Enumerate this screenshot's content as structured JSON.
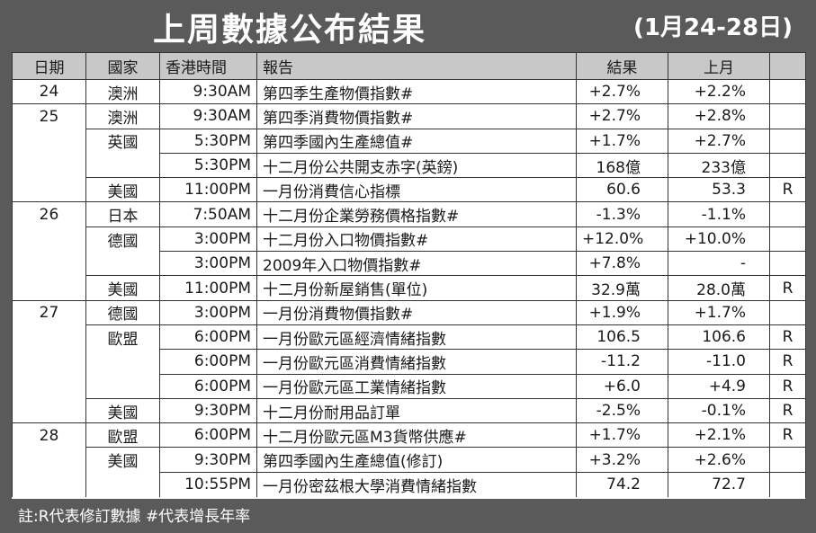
{
  "title": "上周數據公布結果",
  "date_range": "(1月24-28日)",
  "headers": {
    "date": "日期",
    "country": "國家",
    "time": "香港時間",
    "report": "報告",
    "result": "結果",
    "previous": "上月",
    "flag": ""
  },
  "rows": [
    {
      "date": "24",
      "country": "澳洲",
      "time": "9:30AM",
      "report": "第四季生產物價指數#",
      "result": "+2.7%",
      "previous": "+2.2%",
      "flag": ""
    },
    {
      "date": "25",
      "country": "澳洲",
      "time": "9:30AM",
      "report": "第四季消費物價指數#",
      "result": "+2.7%",
      "previous": "+2.8%",
      "flag": ""
    },
    {
      "date": "",
      "country": "英國",
      "time": "5:30PM",
      "report": "第四季國內生產總值#",
      "result": "+1.7%",
      "previous": "+2.7%",
      "flag": ""
    },
    {
      "date": "",
      "country": "",
      "time": "5:30PM",
      "report": "十二月份公共開支赤字(英鎊)",
      "result": "168億",
      "previous": "233億",
      "flag": ""
    },
    {
      "date": "",
      "country": "美國",
      "time": "11:00PM",
      "report": "一月份消費信心指標",
      "result": "60.6",
      "previous": "53.3",
      "flag": "R"
    },
    {
      "date": "26",
      "country": "日本",
      "time": "7:50AM",
      "report": "十二月份企業勞務價格指數#",
      "result": "-1.3%",
      "previous": "-1.1%",
      "flag": ""
    },
    {
      "date": "",
      "country": "德國",
      "time": "3:00PM",
      "report": "十二月份入口物價指數#",
      "result": "+12.0%",
      "previous": "+10.0%",
      "flag": ""
    },
    {
      "date": "",
      "country": "",
      "time": "3:00PM",
      "report": "2009年入口物價指數#",
      "result": "+7.8%",
      "previous": "-",
      "flag": ""
    },
    {
      "date": "",
      "country": "美國",
      "time": "11:00PM",
      "report": "十二月份新屋銷售(單位)",
      "result": "32.9萬",
      "previous": "28.0萬",
      "flag": "R"
    },
    {
      "date": "27",
      "country": "德國",
      "time": "3:00PM",
      "report": "一月份消費物價指數#",
      "result": "+1.9%",
      "previous": "+1.7%",
      "flag": ""
    },
    {
      "date": "",
      "country": "歐盟",
      "time": "6:00PM",
      "report": "一月份歐元區經濟情緒指數",
      "result": "106.5",
      "previous": "106.6",
      "flag": "R"
    },
    {
      "date": "",
      "country": "",
      "time": "6:00PM",
      "report": "一月份歐元區消費情緒指數",
      "result": "-11.2",
      "previous": "-11.0",
      "flag": "R"
    },
    {
      "date": "",
      "country": "",
      "time": "6:00PM",
      "report": "一月份歐元區工業情緒指數",
      "result": "+6.0",
      "previous": "+4.9",
      "flag": "R"
    },
    {
      "date": "",
      "country": "美國",
      "time": "9:30PM",
      "report": "十二月份耐用品訂單",
      "result": "-2.5%",
      "previous": "-0.1%",
      "flag": "R"
    },
    {
      "date": "28",
      "country": "歐盟",
      "time": "6:00PM",
      "report": "十二月份歐元區M3貨幣供應#",
      "result": "+1.7%",
      "previous": "+2.1%",
      "flag": "R"
    },
    {
      "date": "",
      "country": "美國",
      "time": "9:30PM",
      "report": "第四季國內生產總值(修訂)",
      "result": "+3.2%",
      "previous": "+2.6%",
      "flag": ""
    },
    {
      "date": "",
      "country": "",
      "time": "10:55PM",
      "report": "一月份密茲根大學消費情緒指數",
      "result": "74.2",
      "previous": "72.7",
      "flag": ""
    }
  ],
  "footnote": "註:R代表修訂數據  #代表增長年率"
}
